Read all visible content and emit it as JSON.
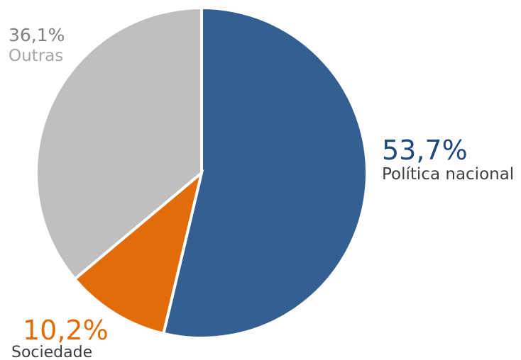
{
  "chart_data": {
    "type": "pie",
    "start_angle": "12 o'clock",
    "direction": "clockwise",
    "slices": [
      {
        "label": "Política nacional",
        "value": 53.7,
        "display": "53,7%",
        "color": "#355F91"
      },
      {
        "label": "Sociedade",
        "value": 10.2,
        "display": "10,2%",
        "color": "#E36C0A"
      },
      {
        "label": "Outras",
        "value": 36.1,
        "display": "36,1%",
        "color": "#BFBFBF"
      }
    ],
    "label_colors": {
      "Política nacional": {
        "percent": "#1F497D",
        "name": "#404040"
      },
      "Sociedade": {
        "percent": "#E36C0A",
        "name": "#404040"
      },
      "Outras": {
        "percent": "#808080",
        "name": "#A6A6A6"
      }
    }
  }
}
